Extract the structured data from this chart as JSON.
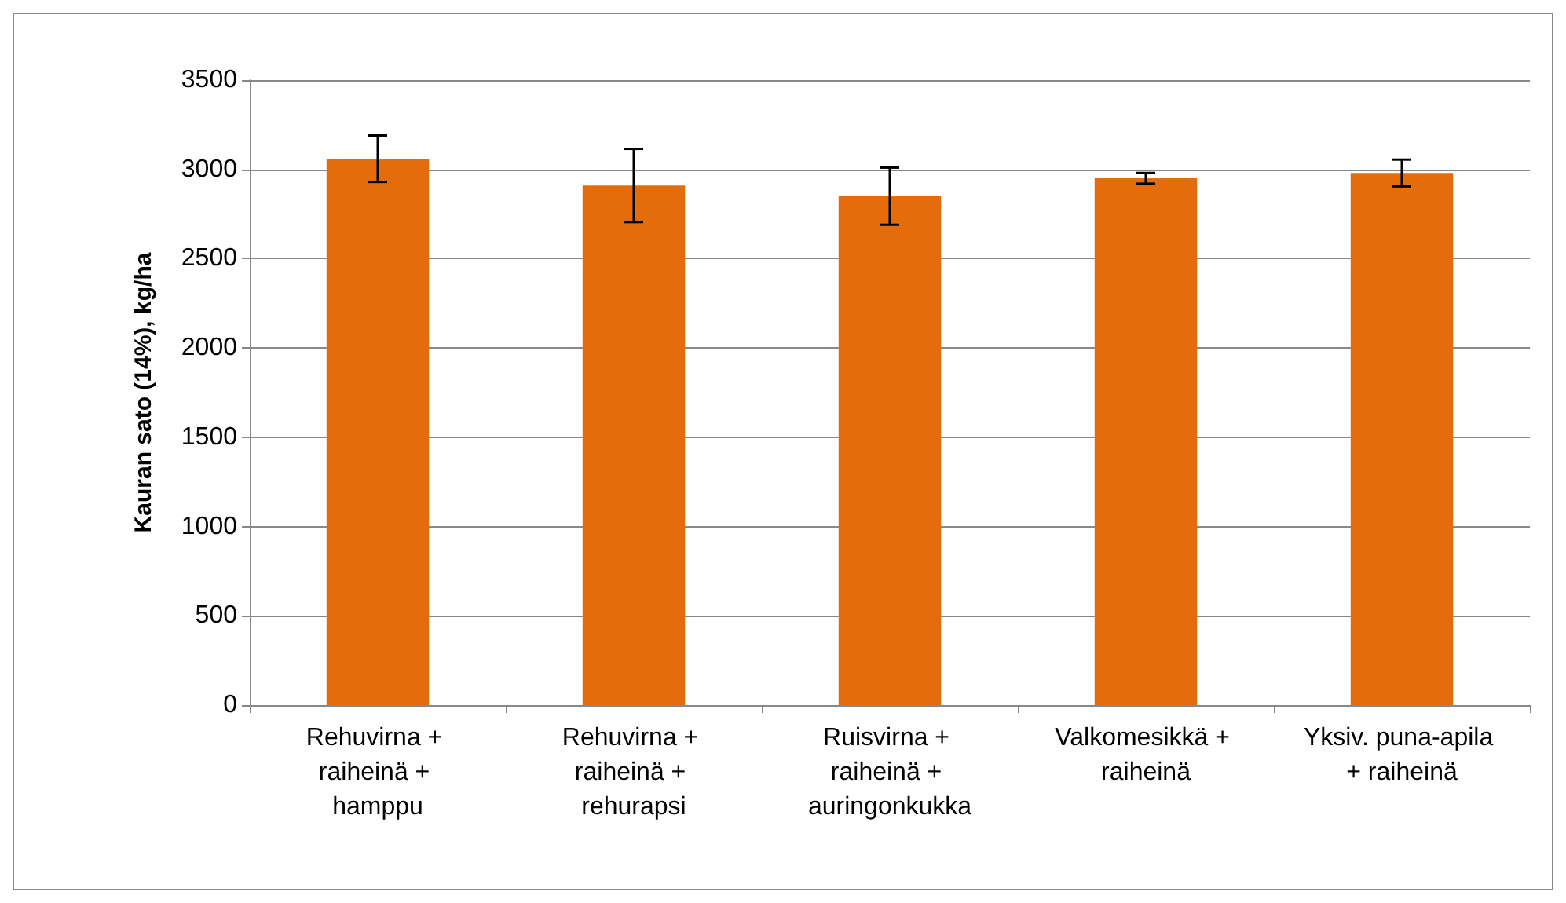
{
  "chart_data": {
    "type": "bar",
    "ylabel": "Kauran sato (14%), kg/ha",
    "categories": [
      "Rehuvirna + raiheinä + hamppu",
      "Rehuvirna + raiheinä + rehurapsi",
      "Ruisvirna + raiheinä + auringonkukka",
      "Valkomesikkä + raiheinä",
      "Yksiv. puna-apila + raiheinä"
    ],
    "values": [
      3060,
      2910,
      2850,
      2950,
      2980
    ],
    "errors": [
      130,
      205,
      160,
      30,
      75
    ],
    "color": "#e46c0a",
    "ylim": [
      0,
      3500
    ],
    "yticks": [
      0,
      500,
      1000,
      1500,
      2000,
      2500,
      3000,
      3500
    ],
    "grid": "y"
  }
}
